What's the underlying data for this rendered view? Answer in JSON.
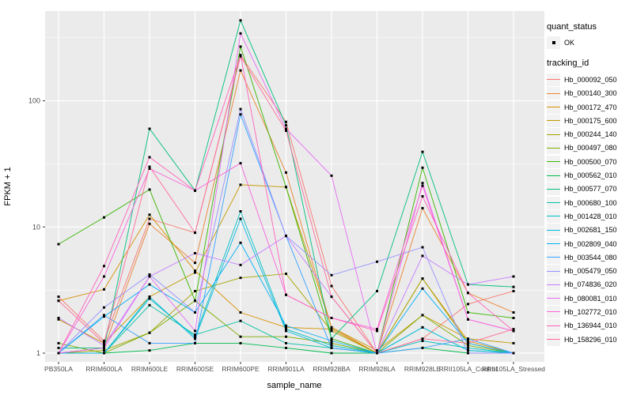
{
  "axes": {
    "x_title": "sample_name",
    "y_title": "FPKM + 1"
  },
  "legend": {
    "quant_status_title": "quant_status",
    "quant_status_item": "OK",
    "tracking_id_title": "tracking_id"
  },
  "colors": {
    "background": "#FFFFFF",
    "panel_bg": "#EBEBEB",
    "grid": "#FFFFFF",
    "tick_mark": "#333333",
    "tick_text": "#4D4D4D",
    "title_text": "#000000",
    "point": "#000000",
    "legend_key_bg": "#F2F2F2"
  },
  "chart_data": {
    "type": "line",
    "title": "",
    "xlabel": "sample_name",
    "ylabel": "FPKM + 1",
    "y_scale": "log10",
    "ylim": [
      0.85,
      525
    ],
    "y_ticks": [
      1,
      10,
      100
    ],
    "y_minor_gridlines": [
      3.162,
      31.62,
      316.2
    ],
    "grid": "white major+minor on gray panel",
    "legend_position": "right",
    "point_shape": "small black square (quant_status OK)",
    "categories": [
      "PB350LA",
      "RRIM600LA",
      "RRIM600LE",
      "RRIM600SE",
      "RRIM600PE",
      "RRIM901LA",
      "RRIM928BA",
      "RRIM928LA",
      "RRIM928LE",
      "RRII105LA_Control",
      "RRII105LA_Stressed"
    ],
    "series": [
      {
        "name": "Hb_000092_050",
        "color": "#F8766D",
        "values": [
          2.8,
          1.25,
          11.6,
          9.0,
          230,
          68,
          3.4,
          1.0,
          1.3,
          2.45,
          3.1
        ]
      },
      {
        "name": "Hb_000140_300",
        "color": "#EA8331",
        "values": [
          1.0,
          1.1,
          10.6,
          5.2,
          174,
          27,
          1.6,
          1.0,
          14.1,
          3.0,
          2.1
        ]
      },
      {
        "name": "Hb_000172_470",
        "color": "#D89000",
        "values": [
          2.6,
          3.2,
          12.5,
          4.5,
          2.1,
          1.6,
          1.55,
          1.0,
          3.9,
          1.25,
          1.0
        ]
      },
      {
        "name": "Hb_000175_600",
        "color": "#C49A00",
        "values": [
          1.85,
          1.2,
          2.8,
          4.35,
          21.6,
          20.7,
          1.6,
          1.05,
          2.0,
          1.3,
          1.2
        ]
      },
      {
        "name": "Hb_000244_140",
        "color": "#A3A500",
        "values": [
          1.0,
          1.05,
          1.45,
          3.1,
          3.95,
          4.25,
          1.5,
          1.0,
          3.9,
          1.2,
          1.0
        ]
      },
      {
        "name": "Hb_000497_080",
        "color": "#7CAE00",
        "values": [
          1.2,
          1.0,
          1.45,
          2.6,
          1.35,
          1.35,
          1.2,
          1.0,
          2.0,
          1.15,
          1.0
        ]
      },
      {
        "name": "Hb_000500_070",
        "color": "#39B600",
        "values": [
          7.3,
          11.9,
          19.8,
          2.6,
          269,
          20.7,
          1.3,
          1.0,
          29.5,
          2.1,
          1.9
        ]
      },
      {
        "name": "Hb_000562_010",
        "color": "#00BB4E",
        "values": [
          1.0,
          1.0,
          1.05,
          1.2,
          1.2,
          1.1,
          1.0,
          1.0,
          1.1,
          1.0,
          1.0
        ]
      },
      {
        "name": "Hb_000577_070",
        "color": "#00BF7D",
        "values": [
          1.1,
          1.1,
          60,
          19.4,
          434,
          64,
          1.3,
          3.1,
          39.4,
          3.5,
          3.35
        ]
      },
      {
        "name": "Hb_000680_100",
        "color": "#00C1A3",
        "values": [
          1.0,
          1.0,
          2.4,
          1.4,
          1.8,
          1.2,
          1.1,
          1.0,
          1.6,
          1.05,
          1.0
        ]
      },
      {
        "name": "Hb_001428_010",
        "color": "#00BFC4",
        "values": [
          1.0,
          1.0,
          2.7,
          1.35,
          13.3,
          1.55,
          1.15,
          1.0,
          1.25,
          1.1,
          1.0
        ]
      },
      {
        "name": "Hb_002681_150",
        "color": "#00BAE0",
        "values": [
          1.0,
          1.0,
          2.8,
          1.3,
          11.6,
          1.5,
          1.1,
          1.0,
          1.6,
          1.05,
          1.0
        ]
      },
      {
        "name": "Hb_002809_040",
        "color": "#00B0F6",
        "values": [
          1.0,
          1.95,
          3.5,
          2.1,
          7.5,
          1.65,
          1.25,
          1.0,
          3.25,
          1.2,
          1.0
        ]
      },
      {
        "name": "Hb_003544_080",
        "color": "#35A2FF",
        "values": [
          1.0,
          2.0,
          1.2,
          1.2,
          78,
          8.5,
          1.1,
          1.0,
          1.1,
          1.3,
          1.0
        ]
      },
      {
        "name": "Hb_005479_050",
        "color": "#9590FF",
        "values": [
          1.0,
          2.3,
          4.2,
          2.1,
          86,
          8.5,
          4.15,
          5.3,
          6.9,
          1.0,
          1.0
        ]
      },
      {
        "name": "Hb_074836_020",
        "color": "#C77CFF",
        "values": [
          1.9,
          1.15,
          4.05,
          6.2,
          5.0,
          8.5,
          2.8,
          1.0,
          5.9,
          3.5,
          4.05
        ]
      },
      {
        "name": "Hb_080081_010",
        "color": "#E76BF3",
        "values": [
          1.0,
          1.1,
          4.05,
          1.5,
          342,
          60,
          25.5,
          1.0,
          22.3,
          1.85,
          1.5
        ]
      },
      {
        "name": "Hb_102772_010",
        "color": "#FA62DB",
        "values": [
          1.0,
          4.05,
          29,
          19.4,
          32,
          2.9,
          1.9,
          1.55,
          21.2,
          1.85,
          1.5
        ]
      },
      {
        "name": "Hb_136944_010",
        "color": "#FF62BC",
        "values": [
          1.0,
          4.9,
          35.7,
          19.4,
          230,
          2.9,
          1.9,
          1.5,
          17.5,
          3.0,
          1.5
        ]
      },
      {
        "name": "Hb_158296_010",
        "color": "#FF6A98",
        "values": [
          2.6,
          1.2,
          30,
          9.0,
          225,
          58,
          2.8,
          1.0,
          1.3,
          1.2,
          1.55
        ]
      }
    ]
  }
}
